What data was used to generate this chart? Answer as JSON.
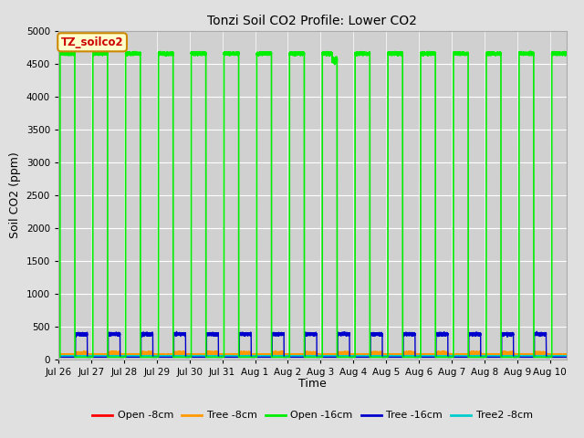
{
  "title": "Tonzi Soil CO2 Profile: Lower CO2",
  "xlabel": "Time",
  "ylabel": "Soil CO2 (ppm)",
  "ylim": [
    0,
    5000
  ],
  "yticks": [
    0,
    500,
    1000,
    1500,
    2000,
    2500,
    3000,
    3500,
    4000,
    4500,
    5000
  ],
  "background_color": "#e0e0e0",
  "plot_bg_color": "#d0d0d0",
  "legend_label": "TZ_soilco2",
  "legend_box_color": "#ffffcc",
  "legend_box_edge": "#cc8800",
  "series": {
    "open_8cm": {
      "color": "#ff0000",
      "label": "Open -8cm",
      "lw": 1.0
    },
    "tree_8cm": {
      "color": "#ff9900",
      "label": "Tree -8cm",
      "lw": 1.0
    },
    "open_16cm": {
      "color": "#00ee00",
      "label": "Open -16cm",
      "lw": 1.2
    },
    "tree_16cm": {
      "color": "#0000cc",
      "label": "Tree -16cm",
      "lw": 1.0
    },
    "tree2_8cm": {
      "color": "#00cccc",
      "label": "Tree2 -8cm",
      "lw": 1.0
    }
  },
  "open_16cm_high": 4650,
  "open_16cm_low": 30,
  "tree_16cm_high": 380,
  "tree_16cm_low": 30,
  "open_8cm_base": 60,
  "tree_8cm_base": 65,
  "tree2_8cm_base": 45,
  "xtick_labels": [
    "Jul 26",
    "Jul 27",
    "Jul 28",
    "Jul 29",
    "Jul 30",
    "Jul 31",
    "Aug 1",
    "Aug 2",
    "Aug 3",
    "Aug 4",
    "Aug 5",
    "Aug 6",
    "Aug 7",
    "Aug 8",
    "Aug 9",
    "Aug 10"
  ],
  "xtick_positions": [
    0,
    1,
    2,
    3,
    4,
    5,
    6,
    7,
    8,
    9,
    10,
    11,
    12,
    13,
    14,
    15
  ]
}
